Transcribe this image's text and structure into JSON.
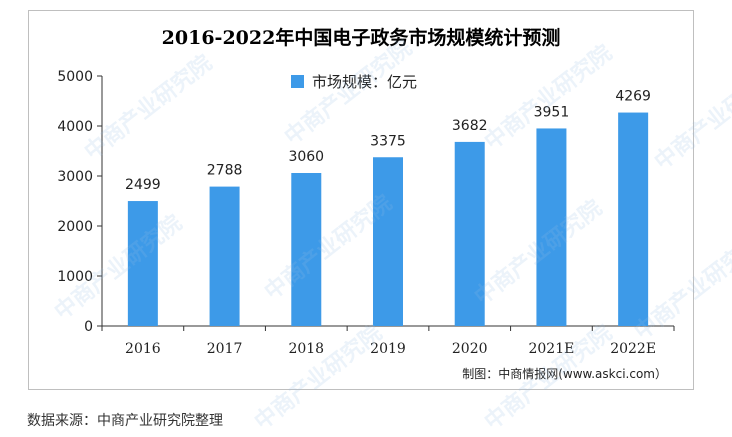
{
  "chart_data": {
    "type": "bar",
    "title": "2016-2022年中国电子政务市场规模统计预测",
    "categories": [
      "2016",
      "2017",
      "2018",
      "2019",
      "2020",
      "2021E",
      "2022E"
    ],
    "series": [
      {
        "name": "市场规模：亿元",
        "values": [
          2499,
          2788,
          3060,
          3375,
          3682,
          3951,
          4269
        ]
      }
    ],
    "ylim": [
      0,
      5000
    ],
    "yticks": [
      0,
      1000,
      2000,
      3000,
      4000,
      5000
    ],
    "grid": false,
    "legend_position": "top-center",
    "bar_color": "#3d9ae8"
  },
  "credit": "制图：中商情报网(www.askci.com）",
  "source": "数据来源：中商产业研究院整理",
  "watermark": "中商产业研究院"
}
